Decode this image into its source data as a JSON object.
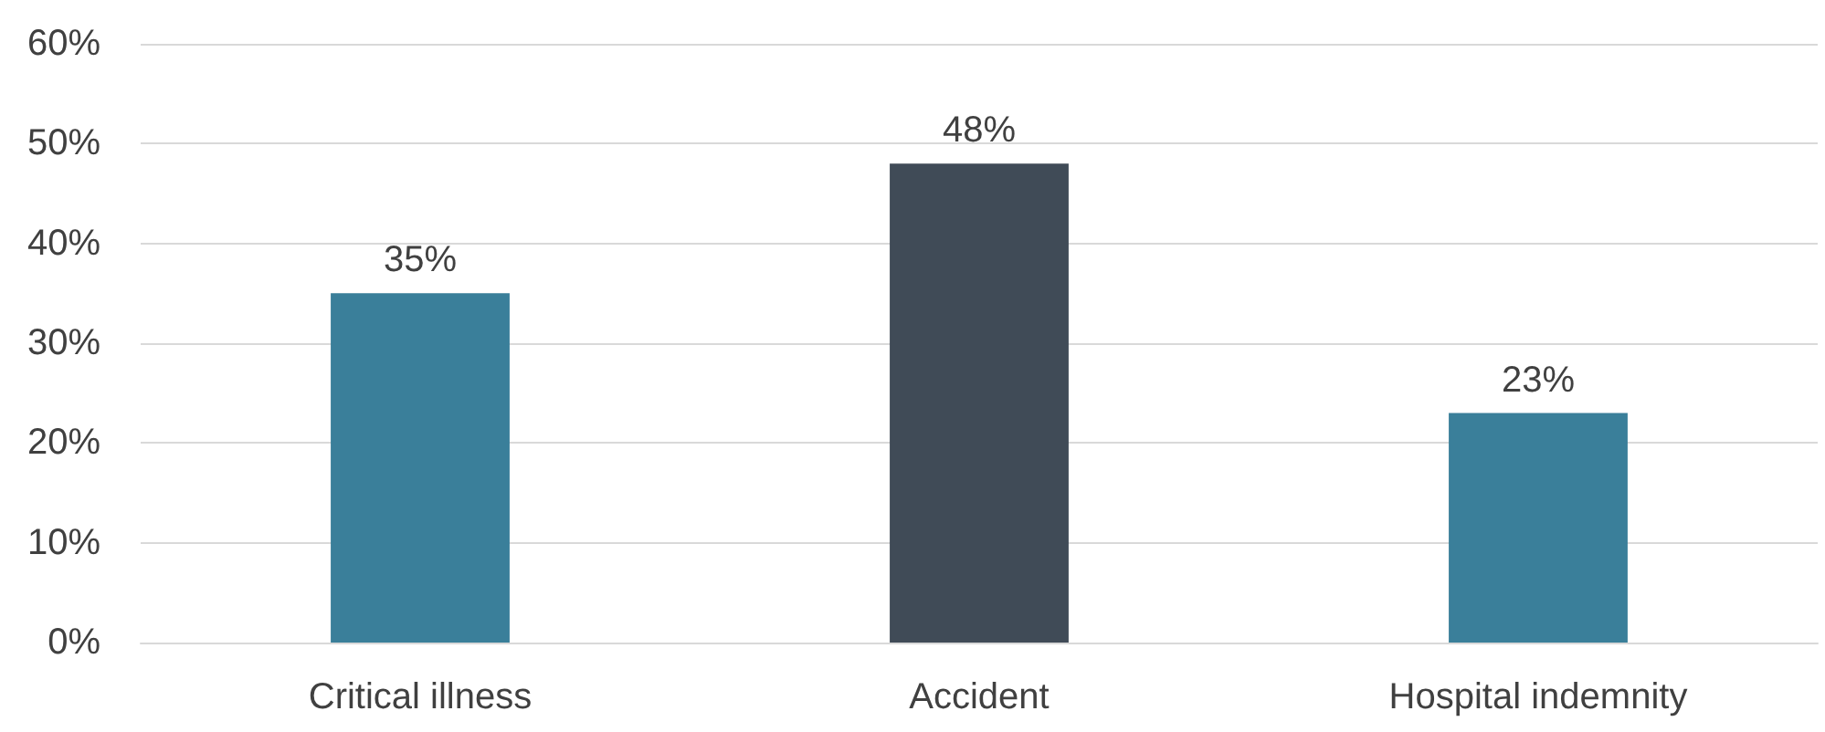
{
  "chart_data": {
    "type": "bar",
    "categories": [
      "Critical illness",
      "Accident",
      "Hospital indemnity"
    ],
    "values": [
      35,
      48,
      23
    ],
    "colors": [
      "#3a7f9a",
      "#404b57",
      "#3a7f9a"
    ],
    "value_labels": [
      "35%",
      "48%",
      "23%"
    ],
    "ylim": [
      0,
      60
    ],
    "yticks": [
      {
        "value": 0,
        "label": "0%"
      },
      {
        "value": 10,
        "label": "10%"
      },
      {
        "value": 20,
        "label": "20%"
      },
      {
        "value": 30,
        "label": "30%"
      },
      {
        "value": 40,
        "label": "40%"
      },
      {
        "value": 50,
        "label": "50%"
      },
      {
        "value": 60,
        "label": "60%"
      }
    ],
    "grid": "y"
  }
}
